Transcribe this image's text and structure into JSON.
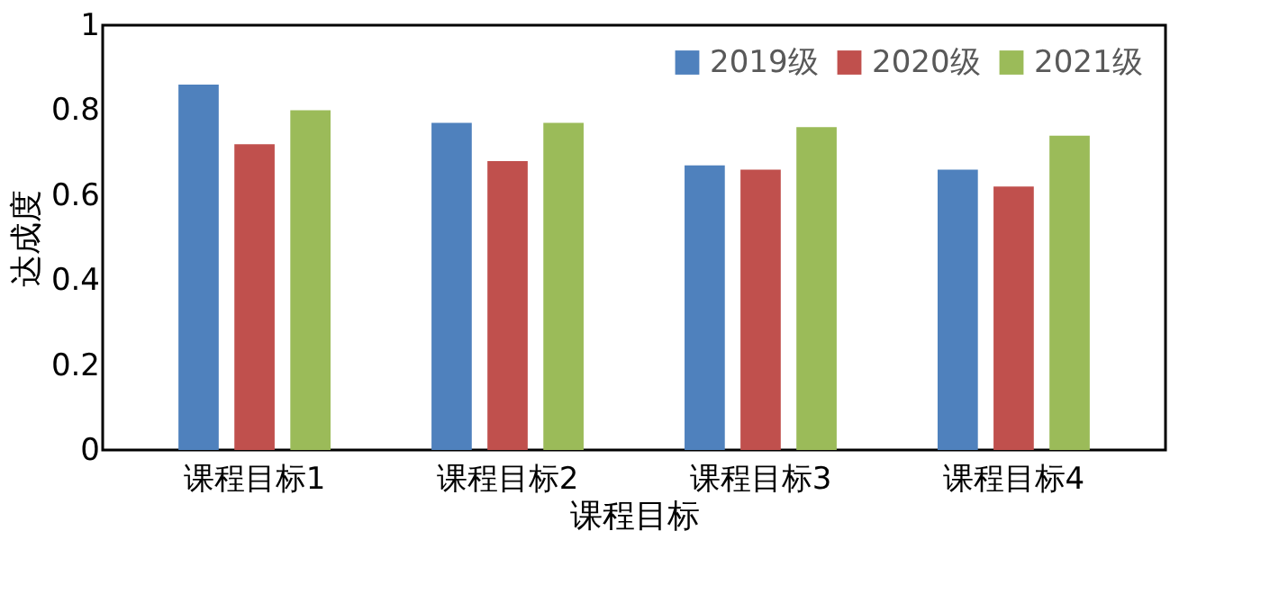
{
  "chart_data": {
    "type": "bar",
    "xlabel": "课程目标",
    "ylabel": "达成度",
    "categories": [
      "课程目标1",
      "课程目标2",
      "课程目标3",
      "课程目标4"
    ],
    "series": [
      {
        "name": "2019级",
        "color": "#4f81bd",
        "values": [
          0.86,
          0.77,
          0.67,
          0.66
        ]
      },
      {
        "name": "2020级",
        "color": "#c0504d",
        "values": [
          0.72,
          0.68,
          0.66,
          0.62
        ]
      },
      {
        "name": "2021级",
        "color": "#9bbb59",
        "values": [
          0.8,
          0.77,
          0.76,
          0.74
        ]
      }
    ],
    "ylim": [
      0,
      1
    ],
    "yticks": [
      0,
      0.2,
      0.4,
      0.6,
      0.8,
      1
    ],
    "grid": false,
    "legend": "top right"
  }
}
